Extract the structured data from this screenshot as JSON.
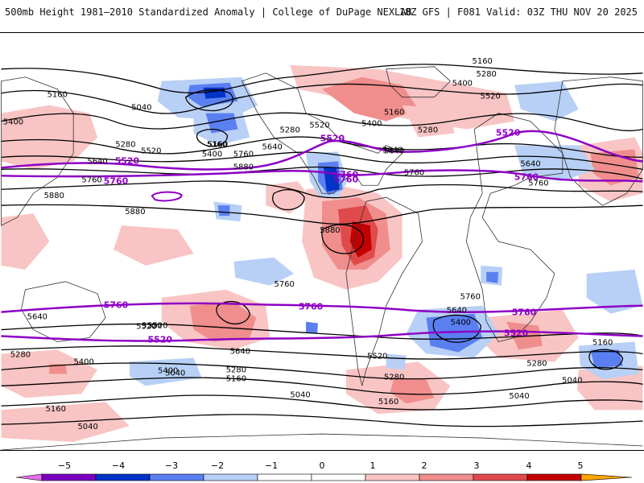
{
  "header": {
    "title": "500mb Height 1981–2010 Standardized Anomaly | College of DuPage NEXLAB",
    "run_info": "18Z GFS | F081 Valid: 03Z THU NOV 20 2025"
  },
  "colors": {
    "contour": "#000000",
    "highlight_contour": "#8e00c4",
    "coast": "#333333",
    "neg5": "#e66ee6",
    "neg4": "#7a00c2",
    "neg3": "#0033c8",
    "neg2": "#5a7ff0",
    "neg1": "#b8d0f5",
    "zero": "#ffffff",
    "pos1": "#f9c4c4",
    "pos2": "#f08d8d",
    "pos3": "#e14a4a",
    "pos4": "#c20000",
    "pos5": "#ffa500"
  },
  "map": {
    "contour_labels": [
      "5160",
      "5160",
      "5280",
      "5400",
      "5520",
      "5400",
      "5160",
      "5040",
      "5160",
      "5280",
      "5520",
      "5400",
      "5280",
      "5640",
      "5640",
      "5760",
      "5880",
      "5880",
      "5160",
      "5280",
      "5400",
      "5520",
      "5640",
      "5640",
      "5760",
      "5760",
      "5880",
      "5880",
      "5760",
      "5640",
      "5760",
      "5400",
      "5640",
      "5520",
      "5400",
      "5280",
      "5040",
      "5160",
      "5280",
      "5520",
      "5640",
      "5520",
      "5280",
      "5160",
      "5040",
      "5040",
      "5160",
      "5040",
      "5760",
      "5640",
      "5400",
      "5160",
      "5280",
      "5040",
      "5520"
    ],
    "highlight_labels": [
      "5520",
      "5520",
      "5760",
      "5760",
      "5520",
      "5760",
      "5760",
      "5760",
      "5760",
      "5520",
      "5760",
      "5520"
    ]
  },
  "legend": {
    "ticks": [
      "−5",
      "−4",
      "−3",
      "−2",
      "−1",
      "0",
      "1",
      "2",
      "3",
      "4",
      "5"
    ]
  }
}
